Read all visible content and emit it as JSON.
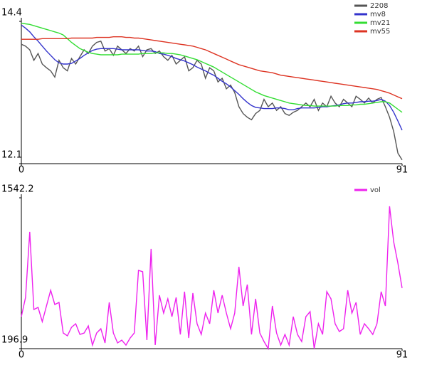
{
  "chart_data": [
    {
      "type": "line",
      "x": [
        0,
        1,
        2,
        3,
        4,
        5,
        6,
        7,
        8,
        9,
        10,
        11,
        12,
        13,
        14,
        15,
        16,
        17,
        18,
        19,
        20,
        21,
        22,
        23,
        24,
        25,
        26,
        27,
        28,
        29,
        30,
        31,
        32,
        33,
        34,
        35,
        36,
        37,
        38,
        39,
        40,
        41,
        42,
        43,
        44,
        45,
        46,
        47,
        48,
        49,
        50,
        51,
        52,
        53,
        54,
        55,
        56,
        57,
        58,
        59,
        60,
        61,
        62,
        63,
        64,
        65,
        66,
        67,
        68,
        69,
        70,
        71,
        72,
        73,
        74,
        75,
        76,
        77,
        78,
        79,
        80,
        81,
        82,
        83,
        84,
        85,
        86,
        87,
        88,
        89,
        90,
        91
      ],
      "xlim": [
        0,
        91
      ],
      "xticks": [
        0,
        91
      ],
      "ylim": [
        12.1,
        14.4
      ],
      "yticks": [
        12.1,
        14.4
      ],
      "legend": "upper right",
      "series": [
        {
          "name": "2208",
          "color": "#555555",
          "values": [
            14.03,
            14.0,
            13.94,
            13.77,
            13.88,
            13.71,
            13.65,
            13.6,
            13.5,
            13.77,
            13.65,
            13.6,
            13.8,
            13.71,
            13.83,
            13.94,
            13.88,
            14.0,
            14.06,
            14.08,
            13.92,
            13.96,
            13.85,
            14.0,
            13.94,
            13.88,
            13.96,
            13.92,
            14.0,
            13.83,
            13.94,
            13.96,
            13.88,
            13.92,
            13.83,
            13.77,
            13.85,
            13.71,
            13.77,
            13.83,
            13.6,
            13.65,
            13.77,
            13.71,
            13.48,
            13.65,
            13.6,
            13.42,
            13.48,
            13.31,
            13.37,
            13.25,
            13.02,
            12.91,
            12.85,
            12.81,
            12.91,
            12.96,
            13.14,
            13.02,
            13.08,
            12.96,
            13.02,
            12.91,
            12.88,
            12.93,
            12.96,
            13.02,
            13.08,
            13.02,
            13.14,
            12.96,
            13.08,
            13.02,
            13.19,
            13.08,
            13.02,
            13.14,
            13.08,
            13.02,
            13.19,
            13.14,
            13.08,
            13.16,
            13.08,
            13.14,
            13.17,
            13.02,
            12.85,
            12.62,
            12.27,
            12.16
          ]
        },
        {
          "name": "mv8",
          "color": "#3333cc",
          "values": [
            14.34,
            14.29,
            14.23,
            14.15,
            14.08,
            14.0,
            13.92,
            13.85,
            13.78,
            13.73,
            13.71,
            13.71,
            13.72,
            13.76,
            13.8,
            13.85,
            13.89,
            13.93,
            13.95,
            13.96,
            13.96,
            13.96,
            13.96,
            13.95,
            13.94,
            13.94,
            13.94,
            13.94,
            13.94,
            13.93,
            13.92,
            13.92,
            13.91,
            13.88,
            13.87,
            13.85,
            13.83,
            13.8,
            13.78,
            13.76,
            13.73,
            13.7,
            13.66,
            13.63,
            13.6,
            13.56,
            13.53,
            13.48,
            13.43,
            13.39,
            13.34,
            13.28,
            13.22,
            13.15,
            13.09,
            13.04,
            13.01,
            13.0,
            12.99,
            12.99,
            12.99,
            13.0,
            13.0,
            12.99,
            12.97,
            12.97,
            12.99,
            13.0,
            13.0,
            13.0,
            13.0,
            13.01,
            13.02,
            13.02,
            13.03,
            13.04,
            13.05,
            13.07,
            13.08,
            13.08,
            13.09,
            13.1,
            13.1,
            13.11,
            13.11,
            13.12,
            13.14,
            13.11,
            13.04,
            12.93,
            12.79,
            12.64
          ]
        },
        {
          "name": "mv21",
          "color": "#33dd33",
          "values": [
            14.37,
            14.36,
            14.35,
            14.33,
            14.31,
            14.29,
            14.27,
            14.25,
            14.23,
            14.21,
            14.18,
            14.12,
            14.06,
            14.01,
            13.96,
            13.93,
            13.9,
            13.88,
            13.87,
            13.86,
            13.86,
            13.86,
            13.86,
            13.86,
            13.87,
            13.87,
            13.87,
            13.87,
            13.87,
            13.88,
            13.88,
            13.88,
            13.89,
            13.89,
            13.89,
            13.88,
            13.88,
            13.87,
            13.86,
            13.84,
            13.82,
            13.8,
            13.78,
            13.75,
            13.72,
            13.69,
            13.66,
            13.62,
            13.58,
            13.54,
            13.5,
            13.46,
            13.42,
            13.38,
            13.34,
            13.3,
            13.26,
            13.23,
            13.2,
            13.18,
            13.16,
            13.14,
            13.12,
            13.1,
            13.08,
            13.07,
            13.06,
            13.05,
            13.04,
            13.04,
            13.03,
            13.03,
            13.03,
            13.03,
            13.03,
            13.03,
            13.04,
            13.04,
            13.04,
            13.05,
            13.05,
            13.06,
            13.06,
            13.07,
            13.08,
            13.09,
            13.1,
            13.1,
            13.08,
            13.03,
            12.98,
            12.93
          ]
        },
        {
          "name": "mv55",
          "color": "#dd3322",
          "values": [
            14.11,
            14.11,
            14.11,
            14.11,
            14.11,
            14.12,
            14.12,
            14.12,
            14.12,
            14.12,
            14.12,
            14.12,
            14.13,
            14.13,
            14.13,
            14.13,
            14.13,
            14.13,
            14.14,
            14.14,
            14.14,
            14.14,
            14.15,
            14.15,
            14.15,
            14.14,
            14.14,
            14.13,
            14.13,
            14.12,
            14.11,
            14.1,
            14.09,
            14.08,
            14.07,
            14.06,
            14.05,
            14.04,
            14.03,
            14.02,
            14.01,
            14.0,
            13.98,
            13.96,
            13.94,
            13.91,
            13.88,
            13.85,
            13.82,
            13.79,
            13.76,
            13.73,
            13.7,
            13.68,
            13.66,
            13.64,
            13.62,
            13.6,
            13.59,
            13.58,
            13.57,
            13.55,
            13.53,
            13.52,
            13.51,
            13.5,
            13.49,
            13.48,
            13.47,
            13.46,
            13.45,
            13.44,
            13.43,
            13.42,
            13.41,
            13.4,
            13.39,
            13.38,
            13.37,
            13.36,
            13.35,
            13.34,
            13.33,
            13.32,
            13.31,
            13.3,
            13.28,
            13.26,
            13.24,
            13.21,
            13.18,
            13.15
          ]
        }
      ]
    },
    {
      "type": "line",
      "x": [
        0,
        1,
        2,
        3,
        4,
        5,
        6,
        7,
        8,
        9,
        10,
        11,
        12,
        13,
        14,
        15,
        16,
        17,
        18,
        19,
        20,
        21,
        22,
        23,
        24,
        25,
        26,
        27,
        28,
        29,
        30,
        31,
        32,
        33,
        34,
        35,
        36,
        37,
        38,
        39,
        40,
        41,
        42,
        43,
        44,
        45,
        46,
        47,
        48,
        49,
        50,
        51,
        52,
        53,
        54,
        55,
        56,
        57,
        58,
        59,
        60,
        61,
        62,
        63,
        64,
        65,
        66,
        67,
        68,
        69,
        70,
        71,
        72,
        73,
        74,
        75,
        76,
        77,
        78,
        79,
        80,
        81,
        82,
        83,
        84,
        85,
        86,
        87,
        88,
        89,
        90,
        91
      ],
      "xlim": [
        0,
        91
      ],
      "xticks": [
        0,
        91
      ],
      "ylim": [
        196.9,
        1542.2
      ],
      "yticks": [
        196.9,
        1542.2
      ],
      "legend": "upper right",
      "series": [
        {
          "name": "vol",
          "color": "#ee22ee",
          "values": [
            482.7,
            654.1,
            1238.3,
            546.2,
            565.2,
            438.2,
            577.9,
            717.6,
            590.6,
            609.6,
            336.6,
            311.2,
            387.4,
            419.2,
            323.9,
            336.6,
            400.1,
            228.7,
            336.6,
            374.7,
            247.7,
            609.6,
            336.6,
            247.7,
            273.1,
            228.7,
            292.2,
            336.6,
            895.4,
            882.7,
            273.1,
            1085.9,
            228.7,
            673.2,
            514.4,
            641.4,
            482.7,
            654.1,
            323.9,
            704.9,
            292.2,
            692.2,
            419.2,
            323.9,
            514.4,
            419.2,
            717.6,
            514.4,
            673.2,
            514.4,
            374.7,
            514.4,
            927.2,
            577.9,
            768.4,
            323.9,
            641.4,
            336.6,
            260.4,
            196.9,
            577.9,
            336.6,
            228.7,
            323.9,
            228.7,
            482.7,
            323.9,
            260.4,
            482.7,
            527.1,
            196.9,
            419.2,
            323.9,
            704.9,
            641.4,
            419.2,
            349.3,
            374.7,
            717.6,
            514.4,
            609.6,
            323.9,
            419.2,
            374.7,
            323.9,
            419.2,
            704.9,
            577.9,
            1466.9,
            1149.4,
            958.9,
            736.7
          ]
        }
      ]
    }
  ]
}
